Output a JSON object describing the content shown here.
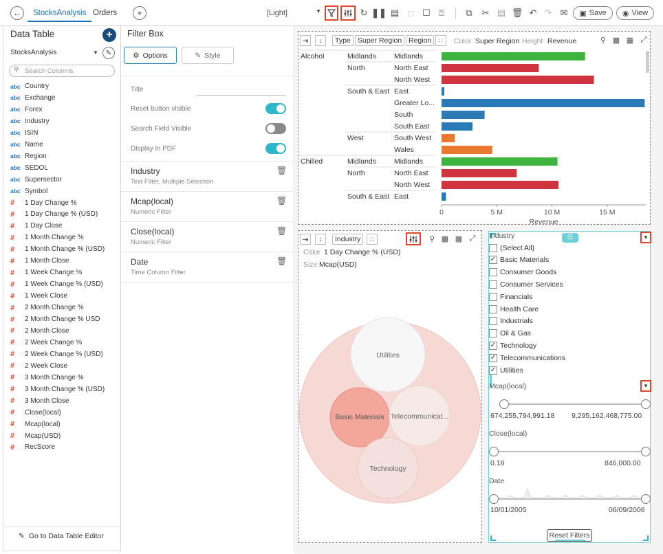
{
  "toolbar": {
    "tabs": [
      "StocksAnalysis",
      "Orders"
    ],
    "theme_label": "[Light]",
    "save_label": "Save",
    "view_label": "View"
  },
  "data_table": {
    "title": "Data Table",
    "source": "StocksAnalysis",
    "search_placeholder": "Search Columns",
    "text_columns": [
      "Country",
      "Exchange",
      "Forex",
      "Industry",
      "ISIN",
      "Name",
      "Region",
      "SEDOL",
      "Supersector",
      "Symbol"
    ],
    "numeric_columns": [
      "1 Day Change %",
      "1 Day Change % (USD)",
      "1 Day Close",
      "1 Month Change %",
      "1 Month Change % (USD)",
      "1 Month Close",
      "1 Week Change %",
      "1 Week Change % (USD)",
      "1 Week Close",
      "2 Month Change %",
      "2 Month Change % USD",
      "2 Month Close",
      "2 Week Change %",
      "2 Week Change % (USD)",
      "2 Week Close",
      "3 Month Change %",
      "3 Month Change % (USD)",
      "3 Month Close",
      "Close(local)",
      "Mcap(local)",
      "Mcap(USD)",
      "RecScore"
    ],
    "text_type_label": "abc",
    "numeric_type_label": "#",
    "footer_link": "Go to Data Table Editor"
  },
  "filter_box": {
    "title": "Filter Box",
    "tabs": [
      "Options",
      "Style"
    ],
    "title_field_label": "Title",
    "settings": [
      {
        "label": "Reset button visible",
        "on": true
      },
      {
        "label": "Search Field Visible",
        "on": false
      },
      {
        "label": "Display in PDF",
        "on": true
      }
    ],
    "filters": [
      {
        "name": "Industry",
        "desc": "Text Filter, Multiple Selection"
      },
      {
        "name": "Mcap(local)",
        "desc": "Numeric Filter"
      },
      {
        "name": "Close(local)",
        "desc": "Numeric Filter"
      },
      {
        "name": "Date",
        "desc": "Time Column Filter"
      }
    ]
  },
  "bar_chart_panel": {
    "chips": [
      "Type",
      "Super Region",
      "Region"
    ],
    "color_label": "Color",
    "color_value": "Super Region",
    "height_label": "Height",
    "height_value": "Revenue",
    "colors": {
      "Midlands": "#3db43d",
      "North": "#d0343f",
      "South & East": "#2a7ab8",
      "West": "#e8792e"
    }
  },
  "chart_data": {
    "type": "bar",
    "orientation": "horizontal",
    "xlabel": "Revenue",
    "xlim": [
      0,
      18500000
    ],
    "xticks": [
      "0",
      "5 M",
      "10 M",
      "15 M"
    ],
    "rows": [
      {
        "type": "Alcohol",
        "super_region": "Midlands",
        "region": "Midlands",
        "value": 13000000
      },
      {
        "type": "",
        "super_region": "North",
        "region": "North East",
        "value": 8800000
      },
      {
        "type": "",
        "super_region": "",
        "region": "North West",
        "value": 13800000
      },
      {
        "type": "",
        "super_region": "South & East",
        "region": "East",
        "value": 250000
      },
      {
        "type": "",
        "super_region": "",
        "region": "Greater Lo...",
        "value": 18400000
      },
      {
        "type": "",
        "super_region": "",
        "region": "South",
        "value": 3900000
      },
      {
        "type": "",
        "super_region": "",
        "region": "South East",
        "value": 2800000
      },
      {
        "type": "",
        "super_region": "West",
        "region": "South West",
        "value": 1200000
      },
      {
        "type": "",
        "super_region": "",
        "region": "Wales",
        "value": 4600000
      },
      {
        "type": "Chilled",
        "super_region": "Midlands",
        "region": "Midlands",
        "value": 10500000
      },
      {
        "type": "",
        "super_region": "North",
        "region": "North East",
        "value": 6800000
      },
      {
        "type": "",
        "super_region": "",
        "region": "North West",
        "value": 10600000
      },
      {
        "type": "",
        "super_region": "South & East",
        "region": "East",
        "value": 400000
      }
    ],
    "series_colors": [
      "#3db43d",
      "#d0343f",
      "#d0343f",
      "#2a7ab8",
      "#2a7ab8",
      "#2a7ab8",
      "#2a7ab8",
      "#e8792e",
      "#e8792e",
      "#3db43d",
      "#d0343f",
      "#d0343f",
      "#2a7ab8"
    ]
  },
  "bubble_panel": {
    "chip": "Industry",
    "color_label": "Color",
    "color_value": "1 Day Change % (USD)",
    "size_label": "Size",
    "size_value": "Mcap(USD)",
    "bubbles": [
      "Utilities",
      "Basic Materials",
      "Telecommunicat...",
      "Technology"
    ]
  },
  "filter_preview": {
    "industry_label": "Industry",
    "industry_options": [
      {
        "label": "(Select All)",
        "checked": false
      },
      {
        "label": "Basic Materials",
        "checked": true
      },
      {
        "label": "Consumer Goods",
        "checked": false
      },
      {
        "label": "Consumer Services",
        "checked": false
      },
      {
        "label": "Financials",
        "checked": false
      },
      {
        "label": "Health Care",
        "checked": false
      },
      {
        "label": "Industrials",
        "checked": false
      },
      {
        "label": "Oil & Gas",
        "checked": false
      },
      {
        "label": "Technology",
        "checked": true
      },
      {
        "label": "Telecommunications",
        "checked": true
      },
      {
        "label": "Utilities",
        "checked": true
      }
    ],
    "mcap_label": "Mcap(local)",
    "mcap_min": "674,255,794,991.18",
    "mcap_max": "9,295,162,468,775.00",
    "close_label": "Close(local)",
    "close_min": "0.18",
    "close_max": "846,000.00",
    "date_label": "Date",
    "date_min": "10/01/2005",
    "date_max": "06/09/2006",
    "reset_label": "Reset Filters"
  }
}
